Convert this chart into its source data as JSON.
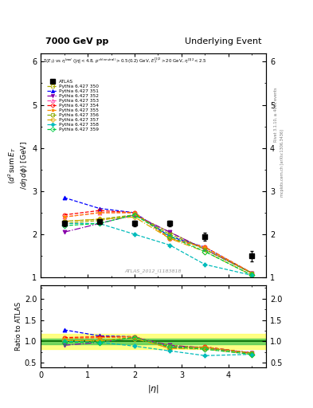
{
  "title_left": "7000 GeV pp",
  "title_right": "Underlying Event",
  "annotation": "ATLAS_2012_I1183818",
  "rivet_text": "Rivet 3.1.10, ≥ 400k events",
  "mcplots_text": "mcplots.cern.ch [arXiv:1306.3436]",
  "ylabel_main": "$\\langle d^2\\mathrm{sum}\\,E_T / d\\eta\\,d\\phi \\rangle$ [GeV]",
  "ylabel_ratio": "Ratio to ATLAS",
  "xlabel": "$|\\eta|$",
  "xlim": [
    0,
    4.8
  ],
  "ylim_main": [
    1.0,
    6.2
  ],
  "ylim_ratio": [
    0.4,
    2.3
  ],
  "yticks_main": [
    1,
    2,
    3,
    4,
    5,
    6
  ],
  "yticks_ratio": [
    0.5,
    1.0,
    1.5,
    2.0
  ],
  "atlas_x": [
    0.5,
    1.25,
    2.0,
    2.75,
    3.5,
    4.5
  ],
  "atlas_y": [
    2.25,
    2.3,
    2.25,
    2.25,
    1.95,
    1.5
  ],
  "atlas_yerr": [
    0.06,
    0.06,
    0.06,
    0.06,
    0.09,
    0.12
  ],
  "series": [
    {
      "label": "Pythia 6.427 350",
      "color": "#aaaa00",
      "linestyle": "--",
      "marker": "s",
      "fillstyle": "none",
      "x": [
        0.5,
        1.25,
        2.0,
        2.75,
        3.5,
        4.5
      ],
      "y": [
        2.25,
        2.32,
        2.45,
        2.05,
        1.65,
        1.1
      ],
      "ratio": [
        1.0,
        1.01,
        1.09,
        0.91,
        0.85,
        0.73
      ]
    },
    {
      "label": "Pythia 6.427 351",
      "color": "#0000ff",
      "linestyle": "--",
      "marker": "^",
      "fillstyle": "full",
      "x": [
        0.5,
        1.25,
        2.0,
        2.75,
        3.5,
        4.5
      ],
      "y": [
        2.85,
        2.6,
        2.5,
        1.95,
        1.7,
        1.1
      ],
      "ratio": [
        1.27,
        1.13,
        1.11,
        0.87,
        0.87,
        0.73
      ]
    },
    {
      "label": "Pythia 6.427 352",
      "color": "#8800aa",
      "linestyle": "-.",
      "marker": "v",
      "fillstyle": "full",
      "x": [
        0.5,
        1.25,
        2.0,
        2.75,
        3.5,
        4.5
      ],
      "y": [
        2.05,
        2.25,
        2.45,
        2.05,
        1.65,
        1.1
      ],
      "ratio": [
        0.91,
        0.98,
        1.09,
        0.91,
        0.85,
        0.73
      ]
    },
    {
      "label": "Pythia 6.427 353",
      "color": "#ff44aa",
      "linestyle": "--",
      "marker": "^",
      "fillstyle": "none",
      "x": [
        0.5,
        1.25,
        2.0,
        2.75,
        3.5,
        4.5
      ],
      "y": [
        2.4,
        2.5,
        2.5,
        1.9,
        1.7,
        1.1
      ],
      "ratio": [
        1.07,
        1.09,
        1.11,
        0.84,
        0.87,
        0.73
      ]
    },
    {
      "label": "Pythia 6.427 354",
      "color": "#ff0000",
      "linestyle": "--",
      "marker": "o",
      "fillstyle": "none",
      "x": [
        0.5,
        1.25,
        2.0,
        2.75,
        3.5,
        4.5
      ],
      "y": [
        2.45,
        2.55,
        2.5,
        1.9,
        1.7,
        1.1
      ],
      "ratio": [
        1.09,
        1.11,
        1.11,
        0.84,
        0.87,
        0.73
      ]
    },
    {
      "label": "Pythia 6.427 355",
      "color": "#ff8800",
      "linestyle": "--",
      "marker": "*",
      "fillstyle": "full",
      "x": [
        0.5,
        1.25,
        2.0,
        2.75,
        3.5,
        4.5
      ],
      "y": [
        2.4,
        2.5,
        2.5,
        1.9,
        1.7,
        1.1
      ],
      "ratio": [
        1.07,
        1.09,
        1.11,
        0.84,
        0.87,
        0.73
      ]
    },
    {
      "label": "Pythia 6.427 356",
      "color": "#88aa00",
      "linestyle": "--",
      "marker": "s",
      "fillstyle": "none",
      "x": [
        0.5,
        1.25,
        2.0,
        2.75,
        3.5,
        4.5
      ],
      "y": [
        2.3,
        2.35,
        2.45,
        2.0,
        1.65,
        1.1
      ],
      "ratio": [
        1.02,
        1.02,
        1.09,
        0.89,
        0.85,
        0.73
      ]
    },
    {
      "label": "Pythia 6.427 357",
      "color": "#ddaa00",
      "linestyle": "-.",
      "marker": "D",
      "fillstyle": "none",
      "x": [
        0.5,
        1.25,
        2.0,
        2.75,
        3.5,
        4.5
      ],
      "y": [
        2.3,
        2.35,
        2.4,
        1.9,
        1.6,
        1.05
      ],
      "ratio": [
        1.02,
        1.02,
        1.07,
        0.84,
        0.82,
        0.7
      ]
    },
    {
      "label": "Pythia 6.427 358",
      "color": "#00bbbb",
      "linestyle": "--",
      "marker": "P",
      "fillstyle": "full",
      "x": [
        0.5,
        1.25,
        2.0,
        2.75,
        3.5,
        4.5
      ],
      "y": [
        2.25,
        2.25,
        2.0,
        1.75,
        1.3,
        1.05
      ],
      "ratio": [
        1.0,
        0.98,
        0.89,
        0.78,
        0.67,
        0.7
      ]
    },
    {
      "label": "Pythia 6.427 359",
      "color": "#00cc44",
      "linestyle": "--",
      "marker": "D",
      "fillstyle": "none",
      "x": [
        0.5,
        1.25,
        2.0,
        2.75,
        3.5,
        4.5
      ],
      "y": [
        2.2,
        2.25,
        2.45,
        1.95,
        1.6,
        1.05
      ],
      "ratio": [
        0.98,
        0.98,
        1.09,
        0.87,
        0.82,
        0.7
      ]
    }
  ],
  "band_green": [
    0.93,
    1.07
  ],
  "band_yellow": [
    0.82,
    1.18
  ]
}
